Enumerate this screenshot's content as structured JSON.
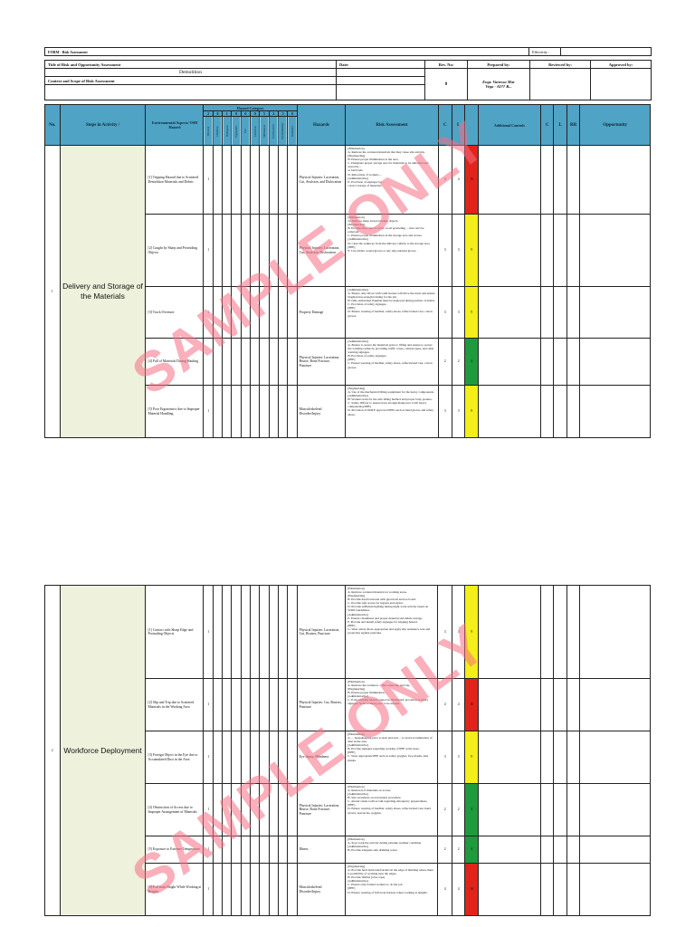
{
  "form": {
    "label": "FORM",
    "sep": "-",
    "title": "Risk Assessment",
    "effectivity_label": "Effectivity :",
    "effectivity_value": ""
  },
  "header": {
    "title_label": "Title of Risk and Opportunity Assessment",
    "title_value": "Demolition",
    "date_label": "Date:",
    "context_label": "Context and Scope of Risk Assessment",
    "rev_label": "Rev. No:",
    "rev_value": "0",
    "prepared_label": "Prepared by:",
    "prepared_name": "Engr. Vanessa Mar",
    "prepared_title": "Vega - AI?? B...",
    "reviewed_label": "Reviewed by:",
    "approved_label": "Approved by:"
  },
  "columns": {
    "no": "No.",
    "steps": "Steps in Activity /",
    "aspects": "Environmental Aspects/ OSH Hazard",
    "hazard_category": "Hazard Category",
    "hazard_digits": [
      "2",
      "0",
      "1",
      "0",
      "0",
      "0",
      "5",
      "2",
      "3",
      "0"
    ],
    "hazard_names": [
      "Physical",
      "Chemical",
      "Biological",
      "Ergonomic",
      "Fire",
      "Electrical",
      "Mechanical",
      "Psychosocial",
      "Environmental",
      "Radiation"
    ],
    "hazards": "Hazards",
    "risk_assessment": "Risk Assessment",
    "c": "C",
    "l": "L",
    "additional_controls": "Additional Controls",
    "c2": "C",
    "l2": "L",
    "rr": "RR",
    "opportunity": "Opportunity"
  },
  "page1": {
    "activity": {
      "no": "1",
      "name": "Delivery and Storage of the Materials"
    },
    "rows": [
      {
        "aspect": "[1] Tripping Hazard due to Scattered Demolition Materials and Debris",
        "mark": "1",
        "hazard": "Physical Injuries: Laceration, Cut, Avulsion, and Dislocation",
        "assessment": "[Elimination]\nA. Remove the scattered materials that may cause slip and trip.\n[Engineering]\nB. Ensure proper illumination at the area.\nC. Designate proper storage area for materials to be delivered and stored in...\nor barricade.\nD. Relocation of workers ...\n[Administrative]\nE. Provision of signages for ...\ncorrect storage of materials.",
        "c": "4",
        "l": "4",
        "rr": "16",
        "color": "red"
      },
      {
        "aspect": "[2] Caught by Sharp and Protruding Objects",
        "mark": "1",
        "hazard": "Physical Injuries: Laceration, Cut, Avulsion, Dislocation",
        "assessment": "[Elimination]\nA. Remove sharp and protruding objects.\n[Engineering]\nB. Provide blue caps or cover on all protruding ... that can't be removed.\nC. Ensure proper illumination in the storage area and access.\n[Administrative]\nD. Clear the walkway from the delivery vehicle to the storage area.\n[PPE]\nE. Use rubber coated gloves or any slip resistant gloves.",
        "c": "3",
        "l": "3",
        "rr": "9",
        "color": "yellow"
      },
      {
        "aspect": "[3] Truck Overturn",
        "mark": "1",
        "hazard": "Property Damage",
        "assessment": "[Administrative]\nA. Ensure only driver with valid license will drive the truck and ensure flagman has enough training for the job.\nB. Only authorized flagman must be deployed during pullout of debris.\nC. Provision of safety signages.\n[PPE]\nD. Ensure wearing of hardhat, safety shoes, reflectorized vest, cotton gloves.",
        "c": "3",
        "l": "3",
        "rr": "9",
        "color": "yellow"
      },
      {
        "aspect": "[4] Fall of Materials During Hauling",
        "mark": "",
        "hazard": "Physical Injuries: Laceration, Bruise, Bone Fracture, Puncture",
        "assessment": "[Administrative]\nA. Ensure to secure the materials prior to lifting and ensure to secure the working radius by providing traffic cones, caution tapes, and other warning signages.\nB. Provision of safety signages.\n[PPE]\nC. Ensure wearing of hardhat, safety shoes, reflectorized vest, cotton gloves.",
        "c": "2",
        "l": "2",
        "rr": "4",
        "color": "green"
      },
      {
        "aspect": "[5] Poor Ergonomics due to Improper Material Handling",
        "mark": "1",
        "hazard": "Musculoskeletal Disorder/Injury",
        "assessment": "[Engineering]\nA. Use of the mechanical lifting equipment for the heavy components.\n[Administrative]\nB. Workers train for the safe lifting method and proper body posture.\nC. Safety Officer to ensure have enough manpower to lift heavy components.[PPE]\nD. Provision of DOLE approved PPEs such as hand gloves and safety shoes.",
        "c": "3",
        "l": "3",
        "rr": "9",
        "color": "yellow"
      }
    ]
  },
  "page2": {
    "activity": {
      "no": "2",
      "name": "Workforce Deployment"
    },
    "rows": [
      {
        "aspect": "[1] Contact with Sharp Edge and Protruding Objects",
        "mark": "1",
        "hazard": "Physical Injuries: Laceration, Cut, Bruises, Puncture",
        "assessment": "[Elimination]\nA. Remove scattered material on working areas.\n[Engineering]\nB. Provide hard barricade with guard rail and toe board.\nC. Provide safe access for ingress and egress.\nD. Provide sufficient lighting during night work activity based on WMS Guidelines.\n[Administrative]\nE. Ensure cleanliness and proper material and debris storage.\nF. Provide and install safety signages for tripping hazard.\n[PPE]\nG. Wear safety shoes appropriate and apply slip resistance sole and protection against puncture.",
        "c": "3",
        "l": "3",
        "rr": "9",
        "color": "yellow"
      },
      {
        "aspect": "[2] Slip and Trip due to Scattered Materials in the Working Area",
        "mark": "1",
        "hazard": "Physical Injuries: Cut, Bruises, Puncture",
        "assessment": "[Elimination]\nA. Remove the scattered ... that cause slip and trip.\n[Engineering]\nB. Ensure proper illumination ...\n[Administrative]\nC. If the tripping hazard cannot be eliminated, provision of safety signages in the working area to be needed.",
        "c": "4",
        "l": "4",
        "rr": "16",
        "color": "red"
      },
      {
        "aspect": "[3] Foreign Object in the Eye due to Accumulated Dust in the Area",
        "mark": "1",
        "hazard": "Eye Injury, Blindness",
        "assessment": "[Elimination]\nA. ... housekeeping prior to start and end ... to avoid accumulation of dust in the area.\n[Administrative]\nB. Provide signages regarding wearing of PPE at the Area.\n[PPE]\nC. Wear appropriate PPE such as safety goggles, face masks, dust masks.",
        "c": "3",
        "l": "3",
        "rr": "9",
        "color": "yellow"
      },
      {
        "aspect": "[4] Obstruction of Access due to Improper Arrangement of Materials",
        "mark": "1",
        "hazard": "Physical Injuries: Laceration, Bruise, Bone Fracture, Puncture",
        "assessment": "[Elimination]\nA. Removal of materials on access.\n[Administrative]\nB. Site awareness on evacuation procedure.\nC. Attend onsite toolbox talk regarding emergency preparedness.\n[PPE]\nD. Ensure wearing of hardhat, safety shoes, reflectorized vest, hand gloves, spectacles, goggles.",
        "c": "2",
        "l": "2",
        "rr": "4",
        "color": "green"
      },
      {
        "aspect": "[5] Exposure to Extreme Temperature",
        "mark": "1",
        "hazard": "Illness",
        "assessment": "[Elimination]\nA. Stop work the activity during extreme weather condition.\n[Administrative]\nB. Provide adequate safe drinking water.",
        "c": "2",
        "l": "2",
        "rr": "4",
        "color": "green"
      },
      {
        "aspect": "[6] Fall from Height While Working at Heights",
        "mark": "1",
        "hazard": "Musculoskeletal Disorder/Injury",
        "assessment": "[Engineering]\nA. Provide hard barricade/barriers in the edge of building where there is possibility of working near the edges.\nB. Provide lifeline (wire rope)\n[Administrative]\nC. Ensure only trained workers to do the job.\n[PPE]\nD. Ensure wearing of full body harness when working at heights.",
        "c": "4",
        "l": "4",
        "rr": "16",
        "color": "red"
      }
    ]
  },
  "watermark": "SAMPLE ONLY",
  "colors": {
    "header_blue": "#4fa3c5",
    "activity_bg": "#eef1dc",
    "red": "#e2231a",
    "yellow": "#f4ee1a",
    "green": "#1f9a3c",
    "watermark": "#f56e82"
  }
}
